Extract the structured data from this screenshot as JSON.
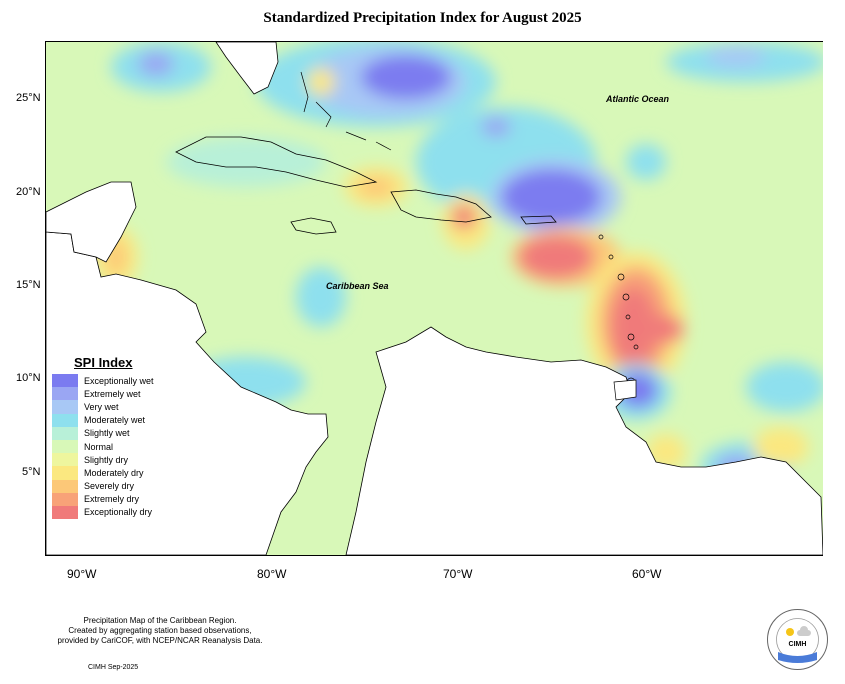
{
  "map": {
    "title": "Standardized Precipitation Index for August 2025",
    "labels": {
      "atlantic": "Atlantic Ocean",
      "caribbean": "Caribbean Sea"
    },
    "lat_labels": [
      "25°N",
      "20°N",
      "15°N",
      "10°N",
      "5°N"
    ],
    "lon_labels": [
      "90°W",
      "80°W",
      "70°W",
      "60°W"
    ],
    "colors": {
      "exceptionally_wet": "#7b7bf0",
      "extremely_wet": "#9aa6f3",
      "very_wet": "#a8c8f5",
      "moderately_wet": "#8ee0ee",
      "slightly_wet": "#b8f0d8",
      "normal": "#d8f8b8",
      "slightly_dry": "#eef69e",
      "moderately_dry": "#fbe880",
      "severely_dry": "#fcc878",
      "extremely_dry": "#f8a278",
      "exceptionally_dry": "#f07a7a"
    }
  },
  "legend": {
    "title": "SPI Index",
    "items": [
      {
        "label": "Exceptionally wet",
        "color": "#7b7bf0"
      },
      {
        "label": "Extremely wet",
        "color": "#9aa6f3"
      },
      {
        "label": "Very wet",
        "color": "#a8c8f5"
      },
      {
        "label": "Moderately wet",
        "color": "#8ee0ee"
      },
      {
        "label": "Slightly wet",
        "color": "#b8f0d8"
      },
      {
        "label": "Normal",
        "color": "#d8f8b8"
      },
      {
        "label": "Slightly dry",
        "color": "#eef69e"
      },
      {
        "label": "Moderately dry",
        "color": "#fbe880"
      },
      {
        "label": "Severely dry",
        "color": "#fcc878"
      },
      {
        "label": "Extremely dry",
        "color": "#f8a278"
      },
      {
        "label": "Exceptionally dry",
        "color": "#f07a7a"
      }
    ]
  },
  "footer": {
    "line1": "Precipitation Map of the Caribbean Region.",
    "line2": "Created by aggregating station based observations,",
    "line3": "provided by CariCOF, with NCEP/NCAR Reanalysis Data.",
    "credit": "CIMH Sep-2025",
    "logo_text": "CIMH"
  }
}
